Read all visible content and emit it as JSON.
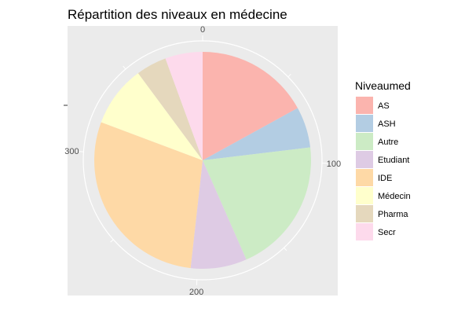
{
  "chart_data": {
    "type": "pie",
    "title": "Répartition des niveaux en médecine",
    "legend_title": "Niveaumed",
    "legend_position": "right",
    "categories": [
      "AS",
      "ASH",
      "Autre",
      "Etudiant",
      "IDE",
      "Médecin",
      "Pharma",
      "Secr"
    ],
    "values": [
      67,
      24,
      80,
      33,
      114,
      36,
      18,
      22
    ],
    "colors": [
      "#FBB4AE",
      "#B3CDE3",
      "#CCEBC5",
      "#DECBE4",
      "#FED9A6",
      "#FFFFCC",
      "#E5D8BD",
      "#FDDAEC"
    ],
    "tick_labels": [
      "0",
      "100",
      "200",
      "300"
    ],
    "panel_background": "#EBEBEB",
    "grid_color": "#FFFFFF"
  }
}
